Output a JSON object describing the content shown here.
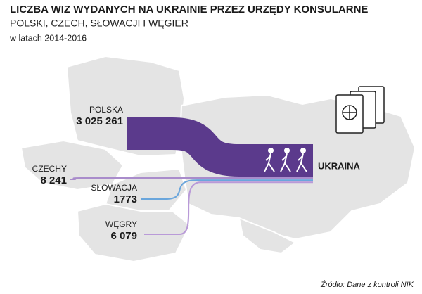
{
  "chart_data": {
    "type": "flow",
    "title": "LICZBA WIZ WYDANYCH NA UKRAINIE PRZEZ URZĘDY KONSULARNE",
    "subtitle": "POLSKI, CZECH, SŁOWACJI I WĘGIER",
    "period": "w latach 2014-2016",
    "target": "UKRAINA",
    "source_note": "Źródło: Dane z kontroli NIK",
    "categories": [
      "POLSKA",
      "CZECHY",
      "SŁOWACJA",
      "WĘGRY"
    ],
    "values": [
      3025261,
      8241,
      1773,
      6079
    ],
    "value_labels": [
      "3 025 261",
      "8 241",
      "1773",
      "6 079"
    ],
    "colors": [
      "#5b3a8c",
      "#a98ccb",
      "#6aa6dc",
      "#b99ad8"
    ]
  }
}
